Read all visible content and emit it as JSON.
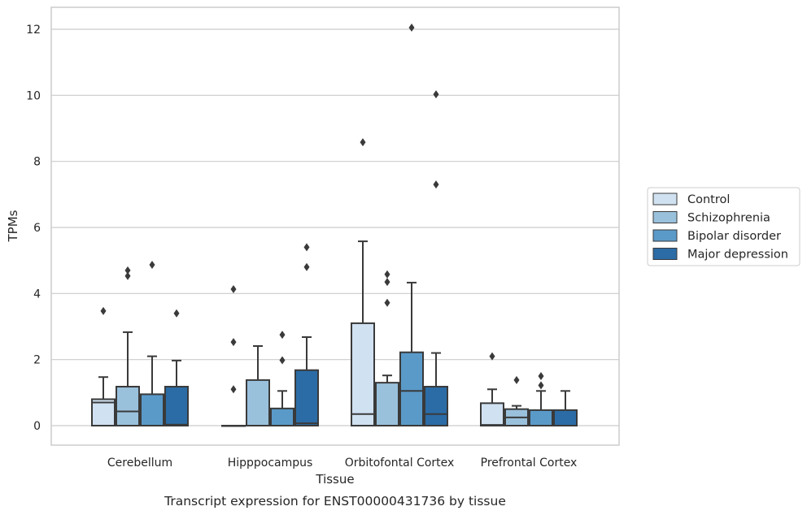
{
  "chart_data": {
    "type": "box",
    "title": "",
    "caption": "Transcript expression for ENST00000431736 by tissue",
    "xlabel": "Tissue",
    "ylabel": "TPMs",
    "ylim": [
      -0.6,
      12.7
    ],
    "yticks": [
      "0",
      "2",
      "4",
      "6",
      "8",
      "10",
      "12"
    ],
    "grid": "horizontal",
    "legend_position": "right",
    "categories": [
      "Cerebellum",
      "Hipppocampus",
      "Orbitofontal Cortex",
      "Prefrontal Cortex"
    ],
    "series": [
      {
        "name": "Control",
        "color": "#d0e1f1",
        "boxes": [
          {
            "q1": 0,
            "median": 0.7,
            "q3": 0.8,
            "whisker_low": 0,
            "whisker_high": 1.47,
            "outliers": [
              3.47
            ]
          },
          {
            "q1": 0,
            "median": 0,
            "q3": 0,
            "whisker_low": 0,
            "whisker_high": 0,
            "outliers": [
              4.13,
              2.53,
              1.1
            ]
          },
          {
            "q1": 0,
            "median": 0.35,
            "q3": 3.1,
            "whisker_low": 0,
            "whisker_high": 5.58,
            "outliers": [
              8.58
            ]
          },
          {
            "q1": 0,
            "median": 0.02,
            "q3": 0.68,
            "whisker_low": 0,
            "whisker_high": 1.1,
            "outliers": [
              2.1
            ]
          }
        ]
      },
      {
        "name": "Schizophrenia",
        "color": "#9ac1dc",
        "boxes": [
          {
            "q1": 0,
            "median": 0.43,
            "q3": 1.18,
            "whisker_low": 0,
            "whisker_high": 2.83,
            "outliers": [
              4.7,
              4.53
            ]
          },
          {
            "q1": 0,
            "median": 0,
            "q3": 1.38,
            "whisker_low": 0,
            "whisker_high": 2.41,
            "outliers": []
          },
          {
            "q1": 0,
            "median": 0,
            "q3": 1.3,
            "whisker_low": 0,
            "whisker_high": 1.52,
            "outliers": [
              4.58,
              4.35,
              3.72
            ]
          },
          {
            "q1": 0,
            "median": 0.25,
            "q3": 0.5,
            "whisker_low": 0,
            "whisker_high": 0.6,
            "outliers": [
              1.38
            ]
          }
        ]
      },
      {
        "name": "Bipolar disorder",
        "color": "#5a9ac9",
        "boxes": [
          {
            "q1": 0,
            "median": 0,
            "q3": 0.95,
            "whisker_low": 0,
            "whisker_high": 2.1,
            "outliers": [
              4.87
            ]
          },
          {
            "q1": 0,
            "median": 0,
            "q3": 0.52,
            "whisker_low": 0,
            "whisker_high": 1.05,
            "outliers": [
              2.75,
              1.98
            ]
          },
          {
            "q1": 0,
            "median": 1.05,
            "q3": 2.22,
            "whisker_low": 0,
            "whisker_high": 4.33,
            "outliers": [
              12.05
            ]
          },
          {
            "q1": 0,
            "median": 0,
            "q3": 0.47,
            "whisker_low": 0,
            "whisker_high": 1.05,
            "outliers": [
              1.5,
              1.22
            ]
          }
        ]
      },
      {
        "name": "Major depression",
        "color": "#2b6ca6",
        "boxes": [
          {
            "q1": 0,
            "median": 0.03,
            "q3": 1.18,
            "whisker_low": 0,
            "whisker_high": 1.97,
            "outliers": [
              3.4
            ]
          },
          {
            "q1": 0,
            "median": 0.07,
            "q3": 1.68,
            "whisker_low": 0,
            "whisker_high": 2.68,
            "outliers": [
              5.4,
              4.8
            ]
          },
          {
            "q1": 0,
            "median": 0.35,
            "q3": 1.18,
            "whisker_low": 0,
            "whisker_high": 2.2,
            "outliers": [
              10.03,
              7.3
            ]
          },
          {
            "q1": 0,
            "median": 0,
            "q3": 0.47,
            "whisker_low": 0,
            "whisker_high": 1.05,
            "outliers": []
          }
        ]
      }
    ]
  }
}
